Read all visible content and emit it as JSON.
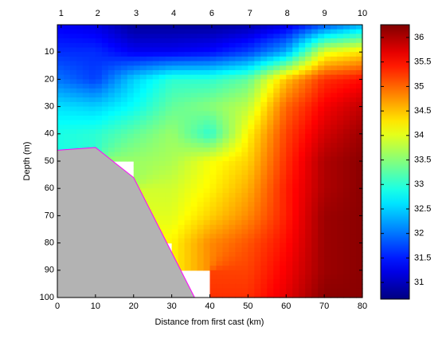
{
  "chart_data": {
    "type": "contour",
    "xlabel": "Distance from first cast (km)",
    "ylabel": "Depth (m)",
    "x": [
      0,
      10,
      20,
      30,
      40,
      50,
      60,
      70,
      80
    ],
    "y": [
      0,
      10,
      20,
      30,
      40,
      50,
      60,
      70,
      80,
      90,
      100
    ],
    "z": [
      [
        31.3,
        31.2,
        30.8,
        30.8,
        30.8,
        30.9,
        31.2,
        31.8,
        32.3
      ],
      [
        31.6,
        31.6,
        31.3,
        31.3,
        31.4,
        31.7,
        32.3,
        34.0,
        34.3
      ],
      [
        32.0,
        31.7,
        32.5,
        33.0,
        33.0,
        33.3,
        34.5,
        35.3,
        35.5
      ],
      [
        32.6,
        32.5,
        32.8,
        33.3,
        33.5,
        33.8,
        35.0,
        35.6,
        35.9
      ],
      [
        32.9,
        33.0,
        33.3,
        33.6,
        33.0,
        34.2,
        35.2,
        35.8,
        36.1
      ],
      [
        null,
        null,
        33.6,
        33.7,
        34.1,
        34.4,
        35.3,
        36.0,
        36.2
      ],
      [
        null,
        null,
        null,
        33.9,
        34.2,
        34.6,
        35.4,
        36.0,
        36.2
      ],
      [
        null,
        null,
        null,
        34.0,
        34.4,
        34.8,
        35.4,
        36.1,
        36.2
      ],
      [
        null,
        null,
        null,
        34.2,
        34.8,
        35.1,
        35.5,
        36.1,
        36.2
      ],
      [
        null,
        null,
        null,
        null,
        null,
        35.2,
        35.6,
        36.1,
        36.2
      ],
      [
        null,
        null,
        null,
        null,
        null,
        35.3,
        35.7,
        36.2,
        36.2
      ]
    ],
    "xlim": [
      0,
      80
    ],
    "ylim": [
      0,
      100
    ],
    "y_reversed": true,
    "xticks": [
      0,
      10,
      20,
      30,
      40,
      50,
      60,
      70,
      80
    ],
    "yticks": [
      10,
      20,
      30,
      40,
      50,
      60,
      70,
      80,
      90,
      100
    ],
    "x2ticks": [
      {
        "value": 1,
        "label": "1"
      },
      {
        "value": 10.6,
        "label": "2"
      },
      {
        "value": 20.7,
        "label": "3"
      },
      {
        "value": 30.5,
        "label": "4"
      },
      {
        "value": 40.5,
        "label": "6"
      },
      {
        "value": 50.5,
        "label": "7"
      },
      {
        "value": 60.3,
        "label": "8"
      },
      {
        "value": 70.1,
        "label": "9"
      },
      {
        "value": 80,
        "label": "10"
      }
    ],
    "colormap": "jet",
    "clim": [
      30.66,
      36.26
    ],
    "cticks": [
      31,
      31.5,
      32,
      32.5,
      33,
      33.5,
      34,
      34.5,
      35,
      35.5,
      36
    ],
    "bottom": {
      "x": [
        0,
        10,
        20,
        36
      ],
      "y": [
        46,
        45,
        56,
        100
      ],
      "color": "#b3b3b3",
      "edge_color": "#ff00ff"
    }
  }
}
